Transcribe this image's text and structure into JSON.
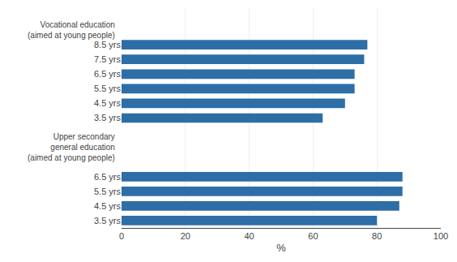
{
  "chart_data": {
    "type": "bar",
    "orientation": "horizontal",
    "categories": [
      null,
      null,
      "8.5 yrs",
      "7.5 yrs",
      "6.5 yrs",
      "5.5 yrs",
      "4.5 yrs",
      "3.5 yrs",
      null,
      null,
      null,
      "6.5 yrs",
      "5.5 yrs",
      "4.5 yrs",
      "3.5 yrs"
    ],
    "values": [
      null,
      null,
      77,
      76,
      73,
      73,
      70,
      63,
      null,
      null,
      null,
      88,
      88,
      87,
      80
    ],
    "color": "#2E6EA6",
    "xlabel": "%",
    "xlim": [
      0,
      100
    ],
    "xticks": [
      0,
      20,
      40,
      60,
      80,
      100
    ],
    "grid": true,
    "annotations": [
      {
        "text": "Vocational education\n(aimed at young people)",
        "y": 1
      },
      {
        "text": "Upper secondary\ngeneral education\n(aimed at young people)",
        "y": 9
      }
    ]
  }
}
